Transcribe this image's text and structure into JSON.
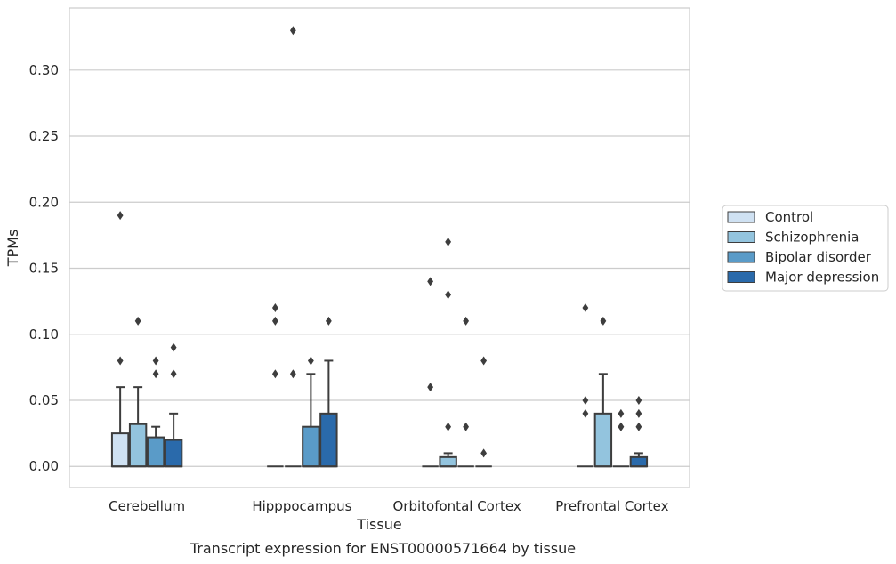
{
  "caption": "Transcript expression for ENST00000571664 by tissue",
  "chart_data": {
    "type": "box",
    "xlabel": "Tissue",
    "ylabel": "TPMs",
    "ylim": [
      -0.016,
      0.347
    ],
    "yticks": [
      "0.00",
      "0.05",
      "0.10",
      "0.15",
      "0.20",
      "0.25",
      "0.30"
    ],
    "ytick_values": [
      0,
      0.05,
      0.1,
      0.15,
      0.2,
      0.25,
      0.3
    ],
    "grid": true,
    "legend_position": "right",
    "categories": [
      "Cerebellum",
      "Hipppocampus",
      "Orbitofontal Cortex",
      "Prefrontal Cortex"
    ],
    "series": [
      {
        "name": "Control",
        "color": "#cfe1f2",
        "boxes": [
          {
            "q1": 0,
            "median": 0,
            "q3": 0.025,
            "whisker_low": 0,
            "whisker_high": 0.06,
            "outliers": [
              0.08,
              0.19
            ]
          },
          {
            "q1": 0,
            "median": 0,
            "q3": 0,
            "whisker_low": 0,
            "whisker_high": 0,
            "outliers": [
              0.07,
              0.11,
              0.12
            ]
          },
          {
            "q1": 0,
            "median": 0,
            "q3": 0,
            "whisker_low": 0,
            "whisker_high": 0,
            "outliers": [
              0.06,
              0.14
            ]
          },
          {
            "q1": 0,
            "median": 0,
            "q3": 0,
            "whisker_low": 0,
            "whisker_high": 0,
            "outliers": [
              0.04,
              0.05,
              0.12
            ]
          }
        ]
      },
      {
        "name": "Schizophrenia",
        "color": "#93c4de",
        "boxes": [
          {
            "q1": 0,
            "median": 0,
            "q3": 0.032,
            "whisker_low": 0,
            "whisker_high": 0.06,
            "outliers": [
              0.11
            ]
          },
          {
            "q1": 0,
            "median": 0,
            "q3": 0,
            "whisker_low": 0,
            "whisker_high": 0,
            "outliers": [
              0.07,
              0.33
            ]
          },
          {
            "q1": 0,
            "median": 0,
            "q3": 0.007,
            "whisker_low": 0,
            "whisker_high": 0.01,
            "outliers": [
              0.03,
              0.13,
              0.17
            ]
          },
          {
            "q1": 0,
            "median": 0,
            "q3": 0.04,
            "whisker_low": 0,
            "whisker_high": 0.07,
            "outliers": [
              0.11
            ]
          }
        ]
      },
      {
        "name": "Bipolar disorder",
        "color": "#5a9bc8",
        "boxes": [
          {
            "q1": 0,
            "median": 0,
            "q3": 0.022,
            "whisker_low": 0,
            "whisker_high": 0.03,
            "outliers": [
              0.07,
              0.08
            ]
          },
          {
            "q1": 0,
            "median": 0,
            "q3": 0.03,
            "whisker_low": 0,
            "whisker_high": 0.07,
            "outliers": [
              0.08
            ]
          },
          {
            "q1": 0,
            "median": 0,
            "q3": 0,
            "whisker_low": 0,
            "whisker_high": 0,
            "outliers": [
              0.03,
              0.11
            ]
          },
          {
            "q1": 0,
            "median": 0,
            "q3": 0,
            "whisker_low": 0,
            "whisker_high": 0,
            "outliers": [
              0.03,
              0.03,
              0.04
            ]
          }
        ]
      },
      {
        "name": "Major depression",
        "color": "#2a6aab",
        "boxes": [
          {
            "q1": 0,
            "median": 0,
            "q3": 0.02,
            "whisker_low": 0,
            "whisker_high": 0.04,
            "outliers": [
              0.07,
              0.09
            ]
          },
          {
            "q1": 0,
            "median": 0,
            "q3": 0.04,
            "whisker_low": 0,
            "whisker_high": 0.08,
            "outliers": [
              0.11
            ]
          },
          {
            "q1": 0,
            "median": 0,
            "q3": 0,
            "whisker_low": 0,
            "whisker_high": 0,
            "outliers": [
              0.01,
              0.08
            ]
          },
          {
            "q1": 0,
            "median": 0,
            "q3": 0.007,
            "whisker_low": 0,
            "whisker_high": 0.01,
            "outliers": [
              0.03,
              0.04,
              0.05
            ]
          }
        ]
      }
    ]
  }
}
